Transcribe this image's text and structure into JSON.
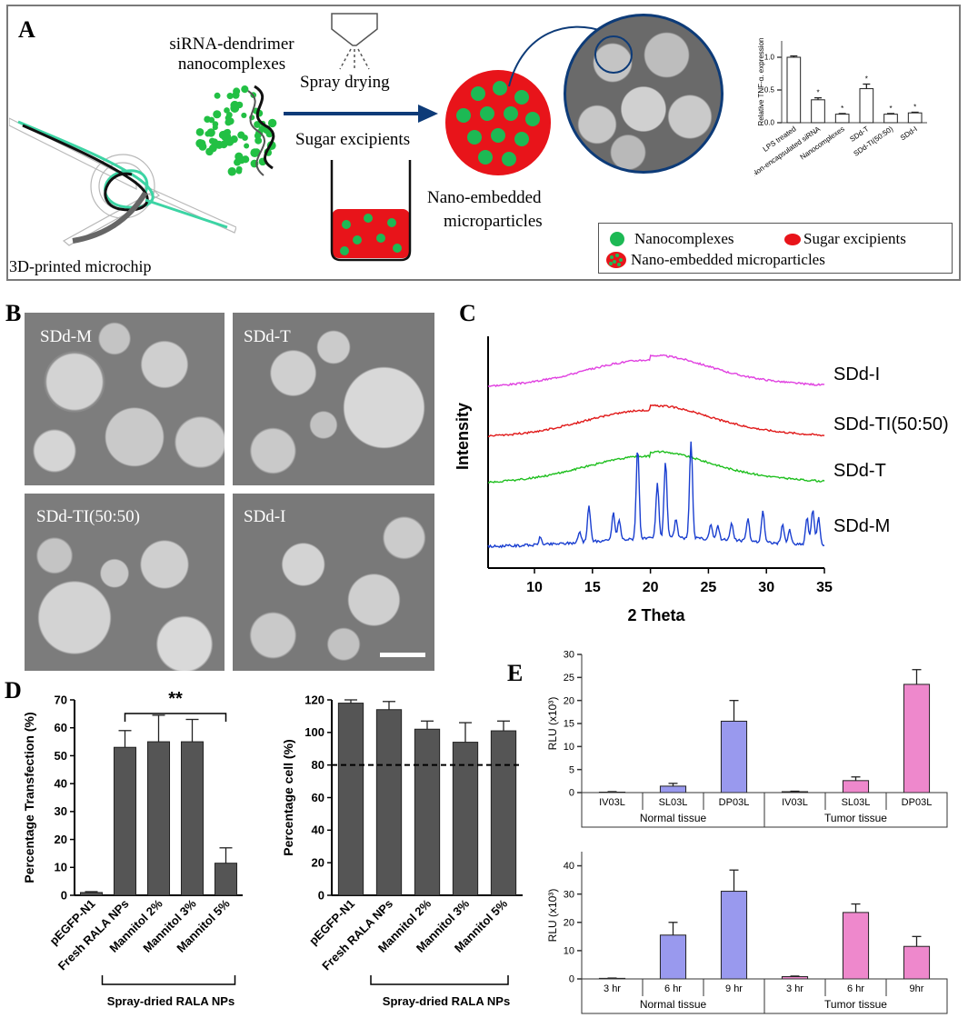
{
  "panels": {
    "a": "A",
    "b": "B",
    "c": "C",
    "d": "D",
    "e": "E"
  },
  "panel_a": {
    "nanocomplex_label_1": "siRNA-dendrimer",
    "nanocomplex_label_2": "nanocomplexes",
    "spray_drying": "Spray drying",
    "sugar_excipients": "Sugar excipients",
    "microchip": "3D-printed microchip",
    "nano_embedded_1": "Nano-embedded",
    "nano_embedded_2": "microparticles",
    "legend": {
      "nanocomplexes": "Nanocomplexes",
      "sugar": "Sugar excipients",
      "nano_embedded": "Nano-embedded microparticles"
    },
    "colors": {
      "nanocomplex": "#1db954",
      "sugar": "#e8141a",
      "arrow": "#0d3b78"
    }
  },
  "panel_b": {
    "images": [
      "SDd-M",
      "SDd-T",
      "SDd-TI(50:50)",
      "SDd-I"
    ]
  },
  "chart_data": [
    {
      "id": "tnf",
      "type": "bar",
      "ylabel": "Relative TNF-α. expression",
      "ylim": [
        0,
        1.25
      ],
      "yticks": [
        0.0,
        0.5,
        1.0
      ],
      "categories": [
        "LPS treated",
        "Non-encapsulated siRNA",
        "Nanocomplexes",
        "SDd-T",
        "SDd-TI(50:50)",
        "SDd-I"
      ],
      "values": [
        1.0,
        0.35,
        0.13,
        0.52,
        0.13,
        0.15
      ],
      "errors": [
        0.02,
        0.03,
        0.01,
        0.07,
        0.01,
        0.01
      ],
      "markers": [
        "",
        "*",
        "*",
        "*",
        "*",
        "*"
      ]
    },
    {
      "id": "xrd",
      "type": "line",
      "xlabel": "2 Theta",
      "ylabel": "Intensity",
      "xlim": [
        6,
        35
      ],
      "xticks": [
        10,
        15,
        20,
        25,
        30,
        35
      ],
      "series": [
        {
          "name": "SDd-I",
          "color": "#e040e0",
          "offset": 0.8,
          "kind": "amorphous"
        },
        {
          "name": "SDd-TI(50:50)",
          "color": "#e01818",
          "offset": 0.56,
          "kind": "amorphous"
        },
        {
          "name": "SDd-T",
          "color": "#1fbf1f",
          "offset": 0.34,
          "kind": "amorphous"
        },
        {
          "name": "SDd-M",
          "color": "#1a3fd0",
          "offset": 0.0,
          "kind": "crystalline",
          "peaks": [
            10.5,
            13.9,
            14.7,
            16.8,
            17.3,
            18.9,
            20.6,
            21.3,
            22.2,
            23.5,
            25.2,
            25.8,
            27.0,
            28.4,
            29.7,
            31.4,
            32.0,
            33.5,
            34.0,
            34.5
          ]
        }
      ]
    },
    {
      "id": "transfection",
      "type": "bar",
      "ylabel": "Percentage Transfection (%)",
      "ylim": [
        0,
        70
      ],
      "yticks": [
        0,
        10,
        20,
        30,
        40,
        50,
        60,
        70
      ],
      "categories": [
        "pEGFP-N1",
        "Fresh RALA NPs",
        "Mannitol 2%",
        "Mannitol 3%",
        "Mannitol 5%"
      ],
      "values": [
        1,
        53,
        55,
        55,
        11.5
      ],
      "errors": [
        0.3,
        6,
        9.5,
        8,
        5.5
      ],
      "significance": "**",
      "group_label": "Spray-dried RALA NPs"
    },
    {
      "id": "viability",
      "type": "bar",
      "ylabel": "Percentage cell (%)",
      "ylim": [
        0,
        120
      ],
      "yticks": [
        0,
        20,
        40,
        60,
        80,
        100,
        120
      ],
      "categories": [
        "pEGFP-N1",
        "Fresh RALA NPs",
        "Mannitol 2%",
        "Mannitol 3%",
        "Mannitol 5%"
      ],
      "values": [
        118,
        114,
        102,
        94,
        101
      ],
      "errors": [
        2,
        5,
        5,
        12,
        6
      ],
      "reference_line": 80,
      "group_label": "Spray-dried RALA NPs"
    },
    {
      "id": "rlu_tissue",
      "type": "bar",
      "ylabel": "RLU (x10³)",
      "ylim": [
        0,
        30
      ],
      "yticks": [
        0,
        5,
        10,
        15,
        20,
        25,
        30
      ],
      "categories": [
        "IV03L",
        "SL03L",
        "DP03L",
        "IV03L",
        "SL03L",
        "DP03L"
      ],
      "groups": [
        "Normal tissue",
        "Tumor tissue"
      ],
      "values": [
        0.1,
        1.4,
        15.5,
        0.2,
        2.6,
        23.5
      ],
      "errors": [
        0.1,
        0.6,
        4.5,
        0.1,
        0.8,
        3.2
      ],
      "colors": [
        "#9999ee",
        "#9999ee",
        "#9999ee",
        "#ee88cc",
        "#ee88cc",
        "#ee88cc"
      ]
    },
    {
      "id": "rlu_time",
      "type": "bar",
      "ylabel": "RLU (x10³)",
      "ylim": [
        0,
        45
      ],
      "yticks": [
        0,
        10,
        20,
        30,
        40
      ],
      "categories": [
        "3 hr",
        "6 hr",
        "9 hr",
        "3 hr",
        "6 hr",
        "9hr"
      ],
      "groups": [
        "Normal tissue",
        "Tumor tissue"
      ],
      "values": [
        0.2,
        15.5,
        31,
        0.8,
        23.5,
        11.5
      ],
      "errors": [
        0.1,
        4.5,
        7.5,
        0.2,
        3,
        3.5
      ],
      "colors": [
        "#9999ee",
        "#9999ee",
        "#9999ee",
        "#ee88cc",
        "#ee88cc",
        "#ee88cc"
      ]
    }
  ]
}
